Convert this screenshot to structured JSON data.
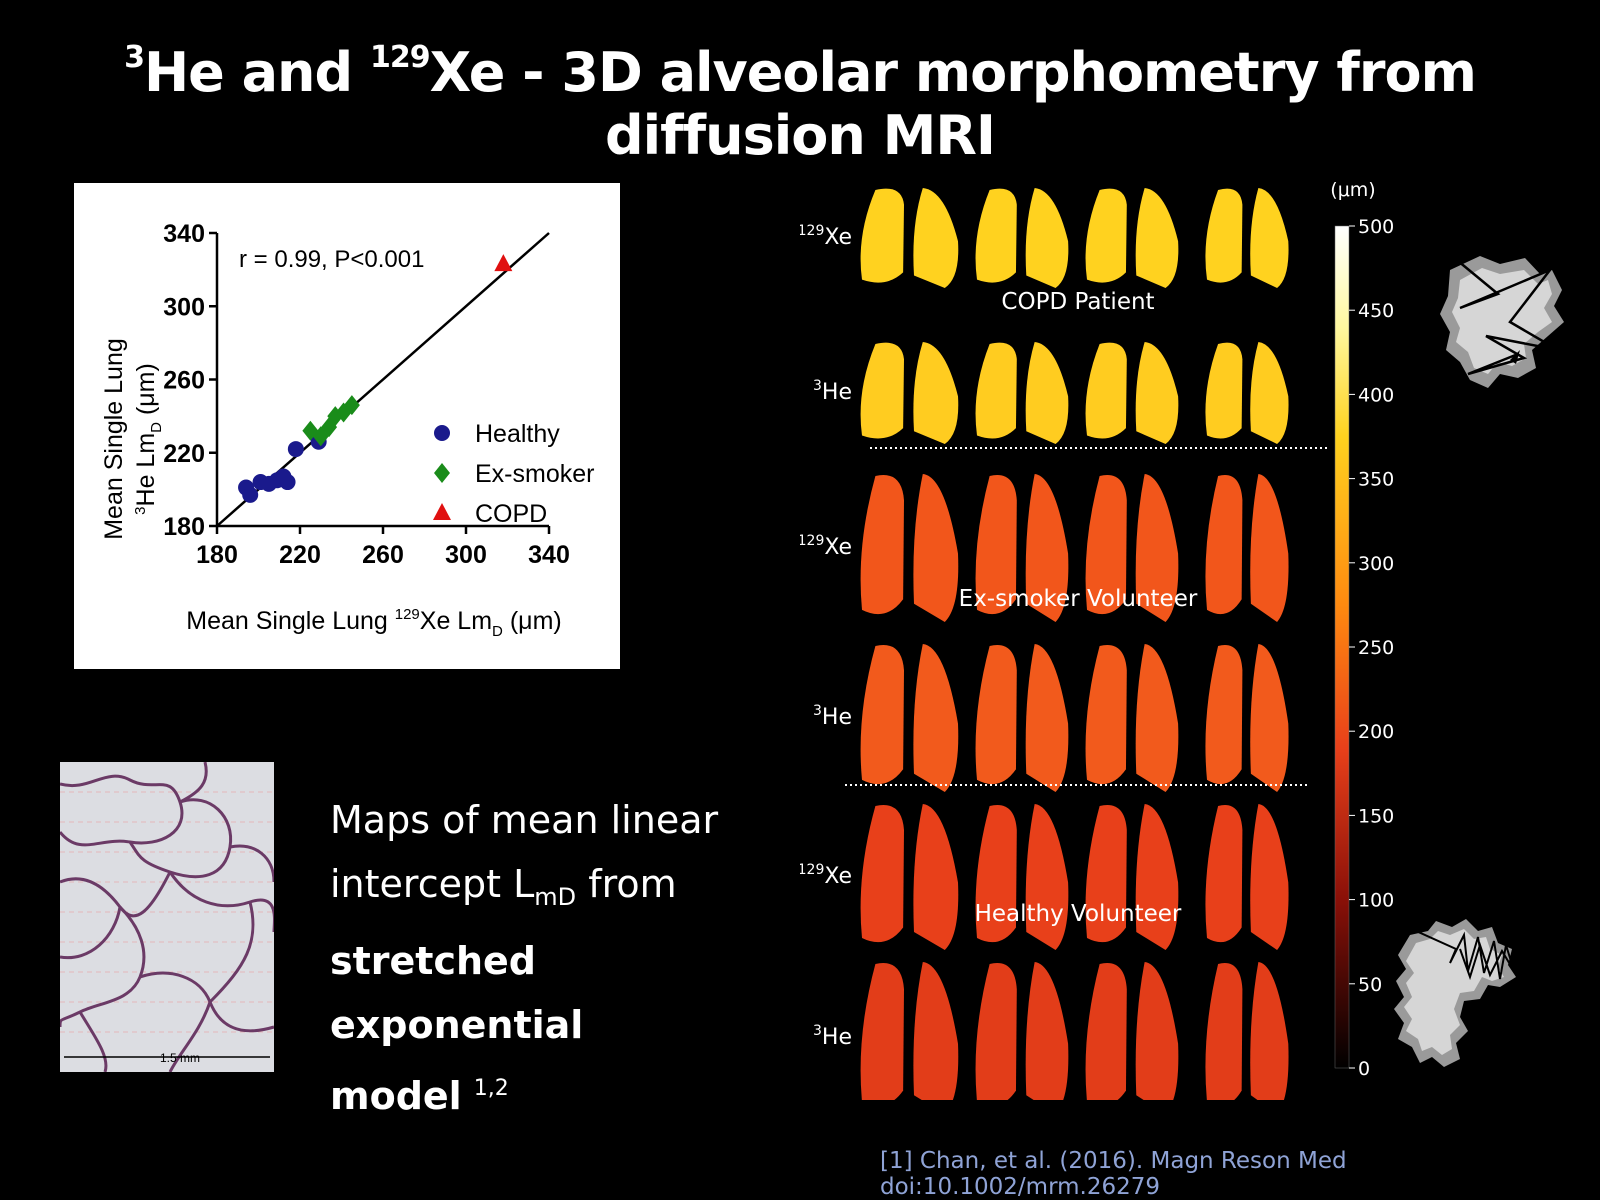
{
  "slide": {
    "title": {
      "sup1": "3",
      "part1": "He and ",
      "sup2": "129",
      "part2": "Xe - 3D alveolar morphometry from diffusion MRI"
    },
    "body_text": {
      "line1": "Maps of mean linear",
      "line2_pre": "intercept L",
      "line2_sub": "mD",
      "line2_post": " from",
      "bold1": "stretched exponential",
      "bold2": "model",
      "refs": "1,2"
    },
    "citation": "[1] Chan, et al. (2016). Magn Reson Med doi:10.1002/mrm.26279",
    "micrograph": {
      "scale_label": "1.5 mm"
    }
  },
  "chart_data": {
    "type": "scatter",
    "ylabel_line1": "Mean Single Lung",
    "ylabel_line2_sup": "3",
    "ylabel_line2": "He Lm",
    "ylabel_line2_sub": "D",
    "ylabel_line2_unit": " (μm)",
    "xlabel_pre": "Mean Single Lung ",
    "xlabel_sup": "129",
    "xlabel_mid": "Xe Lm",
    "xlabel_sub": "D",
    "xlabel_unit": " (μm)",
    "annotation": "r = 0.99, P<0.001",
    "xlim": [
      180,
      340
    ],
    "ylim": [
      180,
      340
    ],
    "xticks": [
      "180",
      "220",
      "260",
      "300",
      "340"
    ],
    "yticks": [
      "180",
      "220",
      "260",
      "300",
      "340"
    ],
    "legend_position": "right",
    "series": [
      {
        "name": "Healthy",
        "marker": "circle",
        "color": "#1a1a8c",
        "points": [
          [
            194,
            201
          ],
          [
            196,
            197
          ],
          [
            201,
            204
          ],
          [
            205,
            203
          ],
          [
            209,
            205
          ],
          [
            212,
            207
          ],
          [
            214,
            204
          ],
          [
            218,
            222
          ],
          [
            229,
            226
          ]
        ]
      },
      {
        "name": "Ex-smoker",
        "marker": "diamond",
        "color": "#1a8c1a",
        "points": [
          [
            225,
            232
          ],
          [
            230,
            229
          ],
          [
            234,
            234
          ],
          [
            237,
            240
          ],
          [
            241,
            242
          ],
          [
            245,
            246
          ]
        ]
      },
      {
        "name": "COPD",
        "marker": "triangle",
        "color": "#e01010",
        "points": [
          [
            318,
            323
          ]
        ]
      }
    ],
    "fit_line": [
      [
        180,
        180
      ],
      [
        340,
        340
      ]
    ]
  },
  "maps": {
    "unit_label": "(μm)",
    "colorbar_ticks": [
      "500",
      "450",
      "400",
      "350",
      "300",
      "250",
      "200",
      "150",
      "100",
      "50",
      "0"
    ],
    "rows": [
      {
        "label_sup": "129",
        "label": "Xe",
        "color": "#ffd21f"
      },
      {
        "label_sup": "3",
        "label": "He",
        "color": "#ffcc20"
      },
      {
        "label_sup": "129",
        "label": "Xe",
        "color": "#f2561b"
      },
      {
        "label_sup": "3",
        "label": "He",
        "color": "#f25a1c"
      },
      {
        "label_sup": "129",
        "label": "Xe",
        "color": "#e8401a"
      },
      {
        "label_sup": "3",
        "label": "He",
        "color": "#e23d19"
      }
    ],
    "group_labels": [
      "COPD Patient",
      "Ex-smoker Volunteer",
      "Healthy Volunteer"
    ]
  }
}
